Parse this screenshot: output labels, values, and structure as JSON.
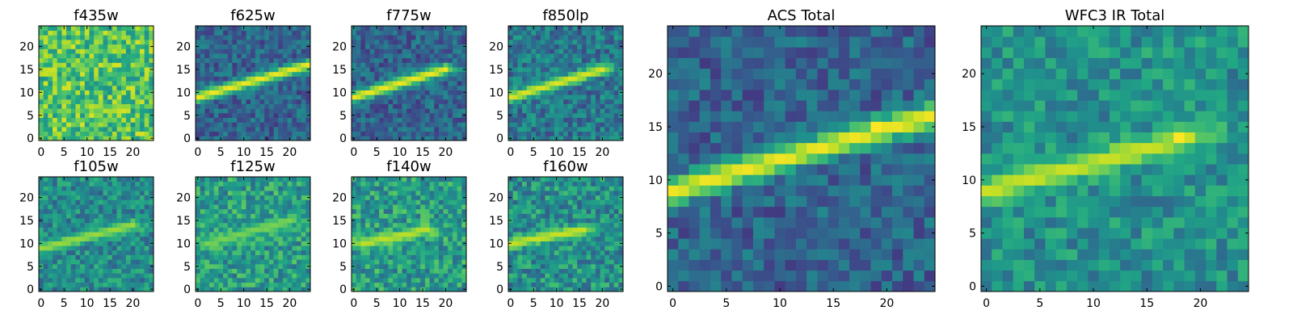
{
  "figure": {
    "background": "#ffffff",
    "colormap": "viridis"
  },
  "chart_data": [
    {
      "type": "heatmap",
      "title": "f435w",
      "xlabel": "",
      "ylabel": "",
      "grid": false,
      "xlim": [
        0,
        24
      ],
      "ylim": [
        0,
        24
      ],
      "xticks": [
        "0",
        "5",
        "10",
        "15",
        "20"
      ],
      "yticks": [
        "0",
        "5",
        "10",
        "15",
        "20"
      ],
      "size": [
        25,
        25
      ],
      "value_range": [
        0,
        1
      ],
      "features": {
        "streak": false,
        "background": 0.72,
        "noise": 0.22
      }
    },
    {
      "type": "heatmap",
      "title": "f625w",
      "xlabel": "",
      "ylabel": "",
      "grid": false,
      "xlim": [
        0,
        24
      ],
      "ylim": [
        0,
        24
      ],
      "xticks": [
        "0",
        "5",
        "10",
        "15",
        "20"
      ],
      "yticks": [
        "0",
        "5",
        "10",
        "15",
        "20"
      ],
      "size": [
        25,
        25
      ],
      "value_range": [
        0,
        1
      ],
      "features": {
        "streak": true,
        "streak_start": [
          0,
          9
        ],
        "streak_end": [
          24,
          16
        ],
        "streak_peak": 0.98,
        "background": 0.32,
        "noise": 0.16
      }
    },
    {
      "type": "heatmap",
      "title": "f775w",
      "xlabel": "",
      "ylabel": "",
      "grid": false,
      "xlim": [
        0,
        24
      ],
      "ylim": [
        0,
        24
      ],
      "xticks": [
        "0",
        "5",
        "10",
        "15",
        "20"
      ],
      "yticks": [
        "0",
        "5",
        "10",
        "15",
        "20"
      ],
      "size": [
        25,
        25
      ],
      "value_range": [
        0,
        1
      ],
      "features": {
        "streak": true,
        "streak_start": [
          0,
          9
        ],
        "streak_end": [
          20,
          15
        ],
        "streak_peak": 0.98,
        "background": 0.32,
        "noise": 0.16
      }
    },
    {
      "type": "heatmap",
      "title": "f850lp",
      "xlabel": "",
      "ylabel": "",
      "grid": false,
      "xlim": [
        0,
        24
      ],
      "ylim": [
        0,
        24
      ],
      "xticks": [
        "0",
        "5",
        "10",
        "15",
        "20"
      ],
      "yticks": [
        "0",
        "5",
        "10",
        "15",
        "20"
      ],
      "size": [
        25,
        25
      ],
      "value_range": [
        0,
        1
      ],
      "features": {
        "streak": true,
        "streak_start": [
          0,
          9
        ],
        "streak_end": [
          20,
          15
        ],
        "streak_peak": 0.95,
        "background": 0.4,
        "noise": 0.18
      }
    },
    {
      "type": "heatmap",
      "title": "f105w",
      "xlabel": "",
      "ylabel": "",
      "grid": false,
      "xlim": [
        0,
        24
      ],
      "ylim": [
        0,
        24
      ],
      "xticks": [
        "0",
        "5",
        "10",
        "15",
        "20"
      ],
      "yticks": [
        "0",
        "5",
        "10",
        "15",
        "20"
      ],
      "size": [
        25,
        25
      ],
      "value_range": [
        0,
        1
      ],
      "features": {
        "streak": true,
        "streak_start": [
          0,
          9
        ],
        "streak_end": [
          20,
          14
        ],
        "streak_peak": 0.85,
        "background": 0.48,
        "noise": 0.18
      }
    },
    {
      "type": "heatmap",
      "title": "f125w",
      "xlabel": "",
      "ylabel": "",
      "grid": false,
      "xlim": [
        0,
        24
      ],
      "ylim": [
        0,
        24
      ],
      "xticks": [
        "0",
        "5",
        "10",
        "15",
        "20"
      ],
      "yticks": [
        "0",
        "5",
        "10",
        "15",
        "20"
      ],
      "size": [
        25,
        25
      ],
      "value_range": [
        0,
        1
      ],
      "features": {
        "streak": true,
        "streak_start": [
          2,
          10
        ],
        "streak_end": [
          20,
          15
        ],
        "streak_peak": 0.8,
        "background": 0.55,
        "noise": 0.2
      }
    },
    {
      "type": "heatmap",
      "title": "f140w",
      "xlabel": "",
      "ylabel": "",
      "grid": false,
      "xlim": [
        0,
        24
      ],
      "ylim": [
        0,
        24
      ],
      "xticks": [
        "0",
        "5",
        "10",
        "15",
        "20"
      ],
      "yticks": [
        "0",
        "5",
        "10",
        "15",
        "20"
      ],
      "size": [
        25,
        25
      ],
      "value_range": [
        0,
        1
      ],
      "features": {
        "streak": true,
        "streak_start": [
          2,
          10
        ],
        "streak_end": [
          16,
          13
        ],
        "streak_peak": 0.9,
        "background": 0.55,
        "noise": 0.2
      }
    },
    {
      "type": "heatmap",
      "title": "f160w",
      "xlabel": "",
      "ylabel": "",
      "grid": false,
      "xlim": [
        0,
        24
      ],
      "ylim": [
        0,
        24
      ],
      "xticks": [
        "0",
        "5",
        "10",
        "15",
        "20"
      ],
      "yticks": [
        "0",
        "5",
        "10",
        "15",
        "20"
      ],
      "size": [
        25,
        25
      ],
      "value_range": [
        0,
        1
      ],
      "features": {
        "streak": true,
        "streak_start": [
          0,
          10
        ],
        "streak_end": [
          16,
          13
        ],
        "streak_peak": 0.92,
        "background": 0.5,
        "noise": 0.2
      }
    },
    {
      "type": "heatmap",
      "title": "ACS Total",
      "xlabel": "",
      "ylabel": "",
      "grid": false,
      "xlim": [
        0,
        24
      ],
      "ylim": [
        0,
        24
      ],
      "xticks": [
        "0",
        "5",
        "10",
        "15",
        "20"
      ],
      "yticks": [
        "0",
        "5",
        "10",
        "15",
        "20"
      ],
      "size": [
        25,
        25
      ],
      "value_range": [
        0,
        1
      ],
      "features": {
        "streak": true,
        "streak_start": [
          0,
          9
        ],
        "streak_end": [
          24,
          16
        ],
        "streak_peak": 0.98,
        "hotspot": [
          19,
          15
        ],
        "background": 0.32,
        "noise": 0.15
      }
    },
    {
      "type": "heatmap",
      "title": "WFC3 IR Total",
      "xlabel": "",
      "ylabel": "",
      "grid": false,
      "xlim": [
        0,
        24
      ],
      "ylim": [
        0,
        24
      ],
      "xticks": [
        "0",
        "5",
        "10",
        "15",
        "20"
      ],
      "yticks": [
        "0",
        "5",
        "10",
        "15",
        "20"
      ],
      "size": [
        25,
        25
      ],
      "value_range": [
        0,
        1
      ],
      "features": {
        "streak": true,
        "streak_start": [
          0,
          9
        ],
        "streak_end": [
          19,
          14
        ],
        "streak_peak": 0.92,
        "hotspot": [
          18,
          14
        ],
        "background": 0.5,
        "noise": 0.16
      }
    }
  ]
}
